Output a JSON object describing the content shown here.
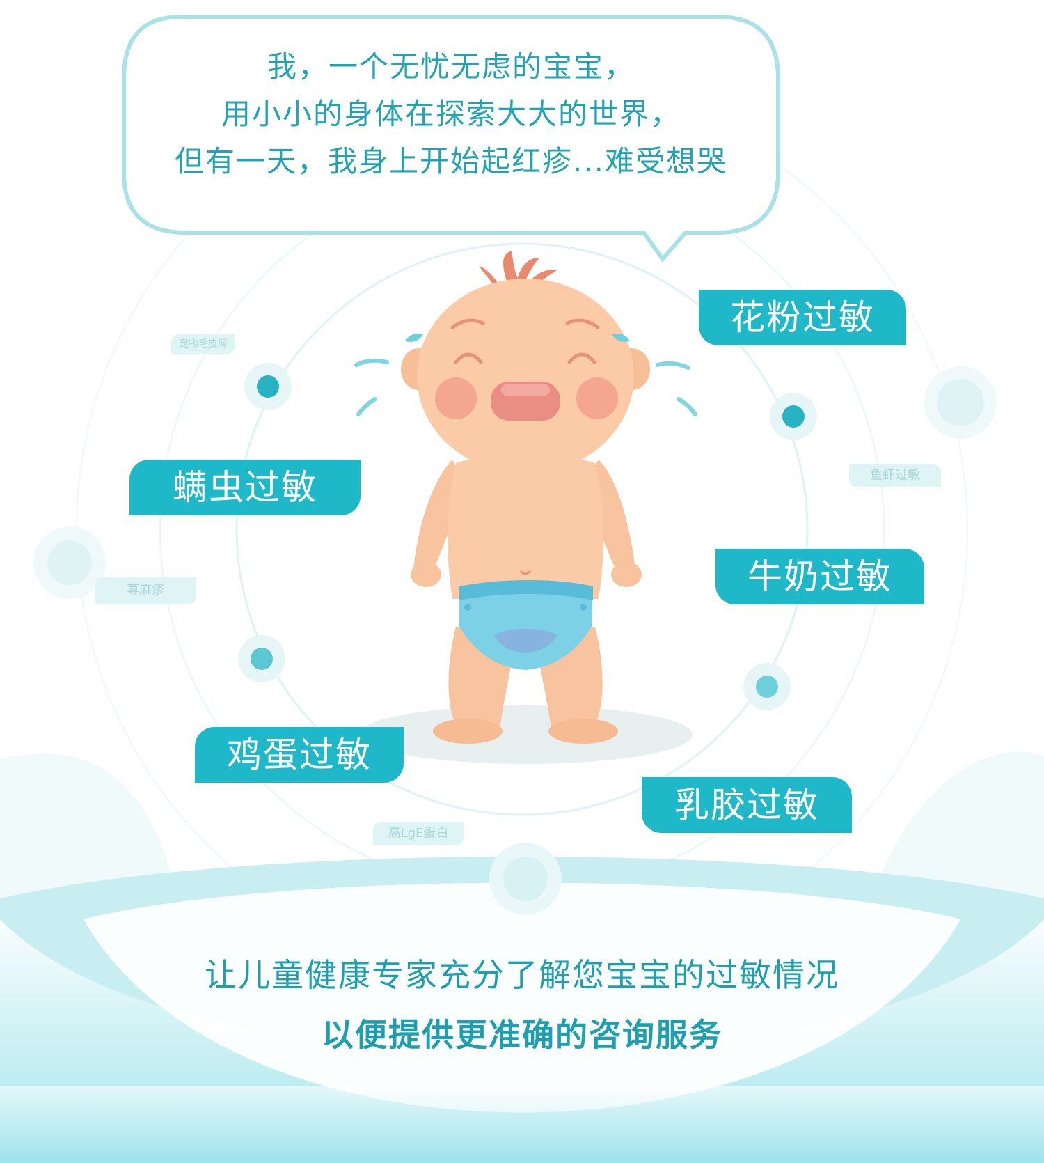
{
  "bubble": {
    "lines": [
      "我，一个无忧无虑的宝宝，",
      "用小小的身体在探索大大的世界，",
      "但有一天，我身上开始起红疹...难受想哭"
    ]
  },
  "tags": {
    "pollen": "花粉过敏",
    "mite": "螨虫过敏",
    "milk": "牛奶过敏",
    "egg": "鸡蛋过敏",
    "latex": "乳胶过敏"
  },
  "minor_tags": {
    "pet": "宠物毛皮屑",
    "seafood": "鱼虾过敏",
    "urticaria": "荨麻疹",
    "ige": "高LgE蛋白"
  },
  "footer": {
    "line1": "让儿童健康专家充分了解您宝宝的过敏情况",
    "line2": "以便提供更准确的咨询服务"
  },
  "colors": {
    "accent": "#1fb8c8",
    "text_teal": "#22a3b2",
    "wave": "#aee8ea",
    "skin": "#fbcaa6",
    "diaper": "#7cd1e6"
  }
}
